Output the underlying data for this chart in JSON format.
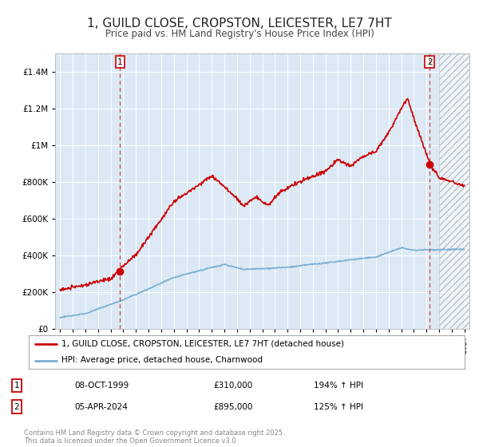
{
  "title": "1, GUILD CLOSE, CROPSTON, LEICESTER, LE7 7HT",
  "subtitle": "Price paid vs. HM Land Registry's House Price Index (HPI)",
  "title_fontsize": 11,
  "subtitle_fontsize": 8.5,
  "background_color": "#ffffff",
  "plot_bg_color": "#dce9f5",
  "grid_color": "#ffffff",
  "hpi_color": "#7bafd4",
  "price_color": "#cc0000",
  "ylim": [
    0,
    1500000
  ],
  "yticks": [
    0,
    200000,
    400000,
    600000,
    800000,
    1000000,
    1200000,
    1400000
  ],
  "sale1_x": 1999.75,
  "sale1_price": 310000,
  "sale2_x": 2024.25,
  "sale2_price": 895000,
  "hatch_start": 2025.0,
  "xlim_left": 1994.6,
  "xlim_right": 2027.4,
  "legend_label_red": "1, GUILD CLOSE, CROPSTON, LEICESTER, LE7 7HT (detached house)",
  "legend_label_blue": "HPI: Average price, detached house, Charnwood",
  "table_row1": [
    "1",
    "08-OCT-1999",
    "£310,000",
    "194% ↑ HPI"
  ],
  "table_row2": [
    "2",
    "05-APR-2024",
    "£895,000",
    "125% ↑ HPI"
  ],
  "footnote": "Contains HM Land Registry data © Crown copyright and database right 2025.\nThis data is licensed under the Open Government Licence v3.0."
}
